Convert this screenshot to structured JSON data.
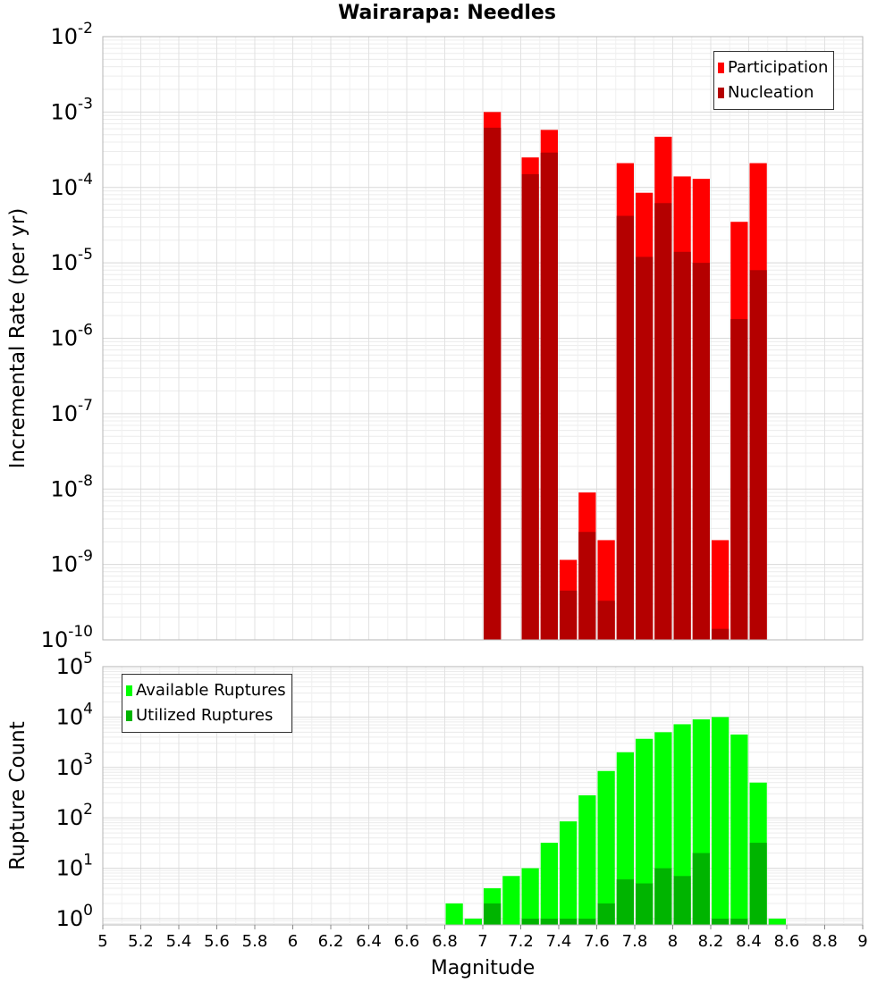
{
  "title": "Wairarapa: Needles",
  "colors": {
    "participation": "#ff0000",
    "nucleation": "#b40000",
    "available": "#00ff00",
    "utilized": "#00b400"
  },
  "chart_data": [
    {
      "type": "bar",
      "scale": "log",
      "ylabel": "Incremental Rate (per yr)",
      "xlabel": "",
      "xlim": [
        5,
        9
      ],
      "ylim": [
        1e-10,
        0.01
      ],
      "y_ticks": [
        "10^-2",
        "10^-3",
        "10^-4",
        "10^-5",
        "10^-6",
        "10^-7",
        "10^-8",
        "10^-9",
        "10^-10"
      ],
      "grid": true,
      "legend": "top-right",
      "x": [
        7.05,
        7.25,
        7.35,
        7.45,
        7.55,
        7.65,
        7.75,
        7.85,
        7.95,
        8.05,
        8.15,
        8.25,
        8.35,
        8.45
      ],
      "series": [
        {
          "name": "Participation",
          "values": [
            0.001,
            0.00025,
            0.00058,
            1.15e-09,
            9e-09,
            2.1e-09,
            0.00021,
            8.5e-05,
            0.00047,
            0.00014,
            0.00013,
            2.1e-09,
            3.5e-05,
            0.00021
          ]
        },
        {
          "name": "Nucleation",
          "values": [
            0.00062,
            0.00015,
            0.00029,
            4.5e-10,
            2.7e-09,
            3.3e-10,
            4.2e-05,
            1.2e-05,
            6.2e-05,
            1.4e-05,
            1e-05,
            1.4e-10,
            1.8e-06,
            8e-06
          ]
        }
      ]
    },
    {
      "type": "bar",
      "scale": "log",
      "ylabel": "Rupture Count",
      "xlabel": "Magnitude",
      "xlim": [
        5,
        9
      ],
      "ylim": [
        0.75,
        100000.0
      ],
      "x_ticks": [
        "5",
        "5.2",
        "5.4",
        "5.6",
        "5.8",
        "6",
        "6.2",
        "6.4",
        "6.6",
        "6.8",
        "7",
        "7.2",
        "7.4",
        "7.6",
        "7.8",
        "8",
        "8.2",
        "8.4",
        "8.6",
        "8.8",
        "9"
      ],
      "y_ticks": [
        "10^5",
        "10^4",
        "10^3",
        "10^2",
        "10^1",
        "10^0"
      ],
      "grid": true,
      "legend": "top-left",
      "series": [
        {
          "name": "Available Ruptures",
          "x": [
            6.85,
            6.95,
            7.05,
            7.15,
            7.25,
            7.35,
            7.45,
            7.55,
            7.65,
            7.75,
            7.85,
            7.95,
            8.05,
            8.15,
            8.25,
            8.35,
            8.45,
            8.55
          ],
          "values": [
            2,
            1,
            4,
            7,
            10,
            32,
            85,
            280,
            850,
            2000,
            3700,
            5000,
            7200,
            9000,
            10000,
            4500,
            500,
            1
          ]
        },
        {
          "name": "Utilized Ruptures",
          "x": [
            7.05,
            7.25,
            7.35,
            7.45,
            7.55,
            7.65,
            7.75,
            7.85,
            7.95,
            8.05,
            8.15,
            8.25,
            8.35,
            8.45
          ],
          "values": [
            2,
            1,
            1,
            1,
            1,
            2,
            6,
            5,
            10,
            7,
            20,
            1,
            1,
            32
          ]
        }
      ]
    }
  ]
}
